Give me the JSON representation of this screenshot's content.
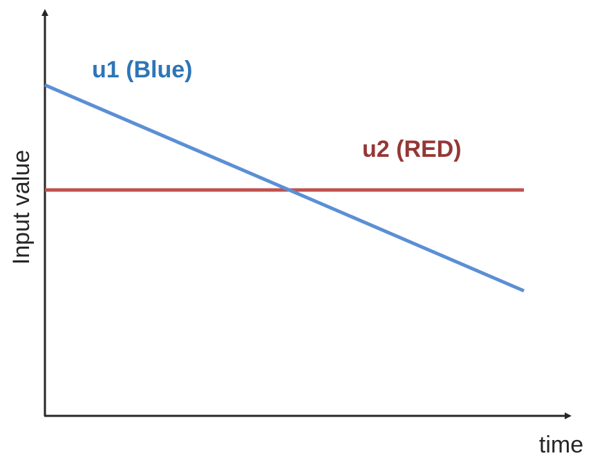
{
  "chart_data": {
    "type": "line",
    "title": "",
    "xlabel": "time",
    "ylabel": "Input value",
    "grid": false,
    "x": [
      0,
      1
    ],
    "ylim": [
      0,
      1
    ],
    "xlim": [
      0,
      1
    ],
    "series": [
      {
        "name": "u1 (Blue)",
        "color": "#5b8fd6",
        "label_color": "#2e75b6",
        "values": [
          0.82,
          0.31
        ]
      },
      {
        "name": "u2 (RED)",
        "color": "#c0504d",
        "label_color": "#953735",
        "values": [
          0.56,
          0.56
        ]
      }
    ]
  }
}
